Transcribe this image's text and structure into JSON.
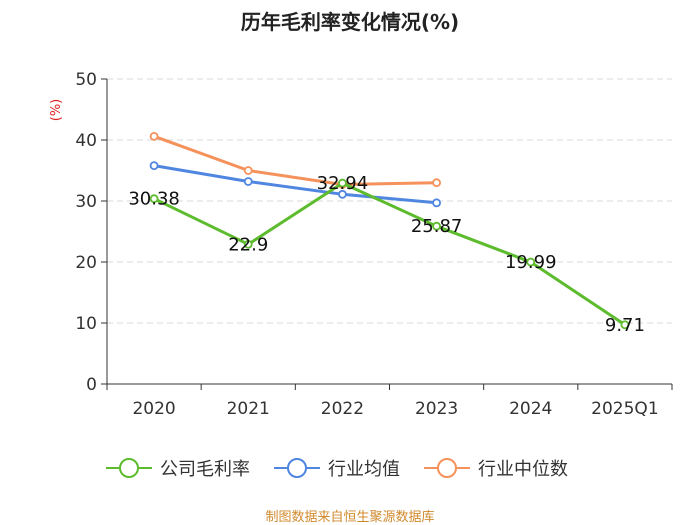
{
  "chart_data": {
    "type": "line",
    "title": "历年毛利率变化情况(%)",
    "xlabel": "",
    "ylabel": "(%)",
    "categories": [
      "2020",
      "2021",
      "2022",
      "2023",
      "2024",
      "2025Q1"
    ],
    "ylim": [
      0,
      50
    ],
    "yticks": [
      0,
      10,
      20,
      30,
      40,
      50
    ],
    "grid": true,
    "legend_position": "bottom",
    "series": [
      {
        "name": "公司毛利率",
        "color": "#5dbb2e",
        "values": [
          30.38,
          22.9,
          32.94,
          25.87,
          19.99,
          9.71
        ],
        "labels": [
          "30.38",
          "22.9",
          "32.94",
          "25.87",
          "19.99",
          "9.71"
        ]
      },
      {
        "name": "行业均值",
        "color": "#4f86e0",
        "values": [
          35.8,
          33.2,
          31.1,
          29.7,
          null,
          null
        ]
      },
      {
        "name": "行业中位数",
        "color": "#f5915a",
        "values": [
          40.6,
          35.0,
          32.7,
          33.0,
          null,
          null
        ]
      }
    ]
  },
  "footer": {
    "source": "制图数据来自恒生聚源数据库"
  }
}
